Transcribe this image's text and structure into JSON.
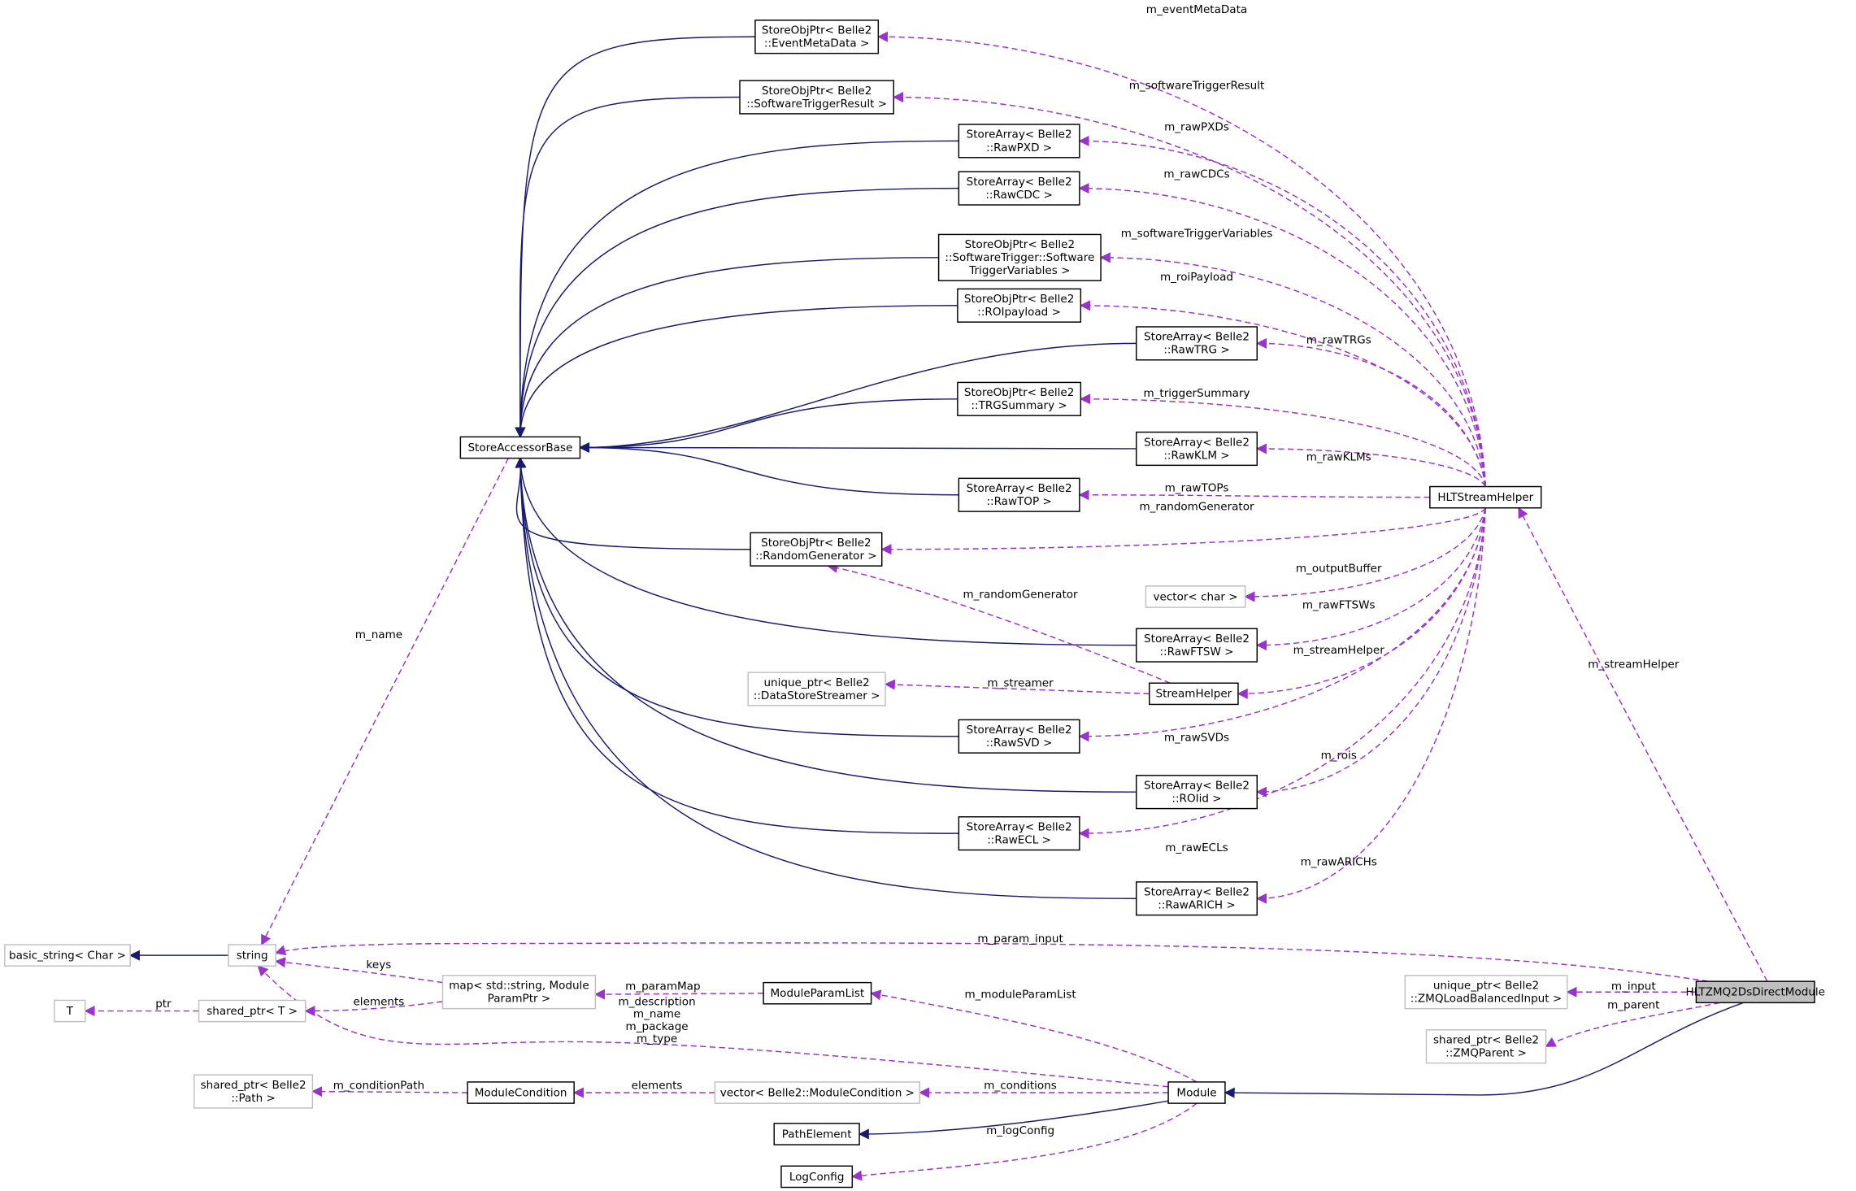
{
  "colors": {
    "inheritance": "#191970",
    "usage": "#9a32cd",
    "focus_fill": "#bfbfbf",
    "undocumented_border": "#bfbfbf"
  },
  "nodes": {
    "eventMeta": {
      "lines": [
        "StoreObjPtr< Belle2",
        "::EventMetaData >"
      ]
    },
    "swTrigRes": {
      "lines": [
        "StoreObjPtr< Belle2",
        "::SoftwareTriggerResult >"
      ]
    },
    "rawPXD": {
      "lines": [
        "StoreArray< Belle2",
        "::RawPXD >"
      ]
    },
    "rawCDC": {
      "lines": [
        "StoreArray< Belle2",
        "::RawCDC >"
      ]
    },
    "swTrigVar": {
      "lines": [
        "StoreObjPtr< Belle2",
        "::SoftwareTrigger::Software",
        "TriggerVariables >"
      ]
    },
    "roiPayload": {
      "lines": [
        "StoreObjPtr< Belle2",
        "::ROIpayload >"
      ]
    },
    "rawTRG": {
      "lines": [
        "StoreArray< Belle2",
        "::RawTRG >"
      ]
    },
    "trgSummary": {
      "lines": [
        "StoreObjPtr< Belle2",
        "::TRGSummary >"
      ]
    },
    "storeAccessorBase": {
      "lines": [
        "StoreAccessorBase"
      ]
    },
    "rawKLM": {
      "lines": [
        "StoreArray< Belle2",
        "::RawKLM >"
      ]
    },
    "rawTOP": {
      "lines": [
        "StoreArray< Belle2",
        "::RawTOP >"
      ]
    },
    "hltStreamHelper": {
      "lines": [
        "HLTStreamHelper"
      ]
    },
    "randomGen": {
      "lines": [
        "StoreObjPtr< Belle2",
        "::RandomGenerator >"
      ]
    },
    "vectorChar": {
      "lines": [
        "vector< char >"
      ]
    },
    "rawFTSW": {
      "lines": [
        "StoreArray< Belle2",
        "::RawFTSW >"
      ]
    },
    "streamHelper": {
      "lines": [
        "StreamHelper"
      ]
    },
    "dsStreamer": {
      "lines": [
        "unique_ptr< Belle2",
        "::DataStoreStreamer >"
      ]
    },
    "rawSVD": {
      "lines": [
        "StoreArray< Belle2",
        "::RawSVD >"
      ]
    },
    "roiId": {
      "lines": [
        "StoreArray< Belle2",
        "::ROIid >"
      ]
    },
    "rawECL": {
      "lines": [
        "StoreArray< Belle2",
        "::RawECL >"
      ]
    },
    "rawARICH": {
      "lines": [
        "StoreArray< Belle2",
        "::RawARICH >"
      ]
    },
    "basicString": {
      "lines": [
        "basic_string< Char >"
      ]
    },
    "string": {
      "lines": [
        "string"
      ]
    },
    "T": {
      "lines": [
        "T"
      ]
    },
    "sharedT": {
      "lines": [
        "shared_ptr< T >"
      ]
    },
    "map": {
      "lines": [
        "map< std::string, Module",
        "ParamPtr >"
      ]
    },
    "moduleParamList": {
      "lines": [
        "ModuleParamList"
      ]
    },
    "zmqInput": {
      "lines": [
        "unique_ptr< Belle2",
        "::ZMQLoadBalancedInput >"
      ]
    },
    "hltzmq": {
      "lines": [
        "HLTZMQ2DsDirectModule"
      ]
    },
    "zmqParent": {
      "lines": [
        "shared_ptr< Belle2",
        "::ZMQParent >"
      ]
    },
    "sharedPath": {
      "lines": [
        "shared_ptr< Belle2",
        "::Path >"
      ]
    },
    "moduleCondition": {
      "lines": [
        "ModuleCondition"
      ]
    },
    "vectorModCond": {
      "lines": [
        "vector< Belle2::ModuleCondition >"
      ]
    },
    "module": {
      "lines": [
        "Module"
      ]
    },
    "pathElement": {
      "lines": [
        "PathElement"
      ]
    },
    "logConfig": {
      "lines": [
        "LogConfig"
      ]
    }
  },
  "edges": [
    {
      "kind": "inherit",
      "from": "eventMeta",
      "to": "storeAccessorBase"
    },
    {
      "kind": "inherit",
      "from": "swTrigRes",
      "to": "storeAccessorBase"
    },
    {
      "kind": "inherit",
      "from": "rawPXD",
      "to": "storeAccessorBase"
    },
    {
      "kind": "inherit",
      "from": "rawCDC",
      "to": "storeAccessorBase"
    },
    {
      "kind": "inherit",
      "from": "swTrigVar",
      "to": "storeAccessorBase"
    },
    {
      "kind": "inherit",
      "from": "roiPayload",
      "to": "storeAccessorBase"
    },
    {
      "kind": "inherit",
      "from": "rawTRG",
      "to": "storeAccessorBase"
    },
    {
      "kind": "inherit",
      "from": "trgSummary",
      "to": "storeAccessorBase"
    },
    {
      "kind": "inherit",
      "from": "rawKLM",
      "to": "storeAccessorBase"
    },
    {
      "kind": "inherit",
      "from": "rawTOP",
      "to": "storeAccessorBase"
    },
    {
      "kind": "inherit",
      "from": "randomGen",
      "to": "storeAccessorBase"
    },
    {
      "kind": "inherit",
      "from": "rawFTSW",
      "to": "storeAccessorBase"
    },
    {
      "kind": "inherit",
      "from": "rawSVD",
      "to": "storeAccessorBase"
    },
    {
      "kind": "inherit",
      "from": "roiId",
      "to": "storeAccessorBase"
    },
    {
      "kind": "inherit",
      "from": "rawECL",
      "to": "storeAccessorBase"
    },
    {
      "kind": "inherit",
      "from": "rawARICH",
      "to": "storeAccessorBase"
    },
    {
      "kind": "inherit",
      "from": "string",
      "to": "basicString"
    },
    {
      "kind": "inherit",
      "from": "module",
      "to": "pathElement"
    },
    {
      "kind": "inherit",
      "from": "hltzmq",
      "to": "module"
    },
    {
      "kind": "use",
      "from": "hltStreamHelper",
      "to": "eventMeta",
      "label": "m_eventMetaData"
    },
    {
      "kind": "use",
      "from": "hltStreamHelper",
      "to": "swTrigRes",
      "label": "m_softwareTriggerResult"
    },
    {
      "kind": "use",
      "from": "hltStreamHelper",
      "to": "rawPXD",
      "label": "m_rawPXDs"
    },
    {
      "kind": "use",
      "from": "hltStreamHelper",
      "to": "rawCDC",
      "label": "m_rawCDCs"
    },
    {
      "kind": "use",
      "from": "hltStreamHelper",
      "to": "swTrigVar",
      "label": "m_softwareTriggerVariables"
    },
    {
      "kind": "use",
      "from": "hltStreamHelper",
      "to": "roiPayload",
      "label": "m_roiPayload"
    },
    {
      "kind": "use",
      "from": "hltStreamHelper",
      "to": "rawTRG",
      "label": "m_rawTRGs"
    },
    {
      "kind": "use",
      "from": "hltStreamHelper",
      "to": "trgSummary",
      "label": "m_triggerSummary"
    },
    {
      "kind": "use",
      "from": "hltStreamHelper",
      "to": "rawKLM",
      "label": "m_rawKLMs"
    },
    {
      "kind": "use",
      "from": "hltStreamHelper",
      "to": "rawTOP",
      "label": "m_rawTOPs"
    },
    {
      "kind": "use",
      "from": "hltStreamHelper",
      "to": "randomGen",
      "label": "m_randomGenerator"
    },
    {
      "kind": "use",
      "from": "hltStreamHelper",
      "to": "vectorChar",
      "label": "m_outputBuffer"
    },
    {
      "kind": "use",
      "from": "hltStreamHelper",
      "to": "rawFTSW",
      "label": "m_rawFTSWs"
    },
    {
      "kind": "use",
      "from": "hltStreamHelper",
      "to": "streamHelper",
      "label": "m_streamHelper"
    },
    {
      "kind": "use",
      "from": "hltStreamHelper",
      "to": "rawSVD",
      "label": "m_rawSVDs"
    },
    {
      "kind": "use",
      "from": "hltStreamHelper",
      "to": "roiId",
      "label": "m_rois"
    },
    {
      "kind": "use",
      "from": "hltStreamHelper",
      "to": "rawECL",
      "label": "m_rawECLs"
    },
    {
      "kind": "use",
      "from": "hltStreamHelper",
      "to": "rawARICH",
      "label": "m_rawARICHs"
    },
    {
      "kind": "use",
      "from": "hltzmq",
      "to": "hltStreamHelper",
      "label": "m_streamHelper"
    },
    {
      "kind": "use",
      "from": "hltzmq",
      "to": "string",
      "label": "m_param_input"
    },
    {
      "kind": "use",
      "from": "hltzmq",
      "to": "zmqInput",
      "label": "m_input"
    },
    {
      "kind": "use",
      "from": "hltzmq",
      "to": "zmqParent",
      "label": "m_parent"
    },
    {
      "kind": "use",
      "from": "storeAccessorBase",
      "to": "string",
      "label": "m_name"
    },
    {
      "kind": "use",
      "from": "streamHelper",
      "to": "randomGen",
      "label": "m_randomGenerator"
    },
    {
      "kind": "use",
      "from": "streamHelper",
      "to": "dsStreamer",
      "label": "m_streamer"
    },
    {
      "kind": "use",
      "from": "map",
      "to": "string",
      "label": "keys"
    },
    {
      "kind": "use",
      "from": "map",
      "to": "sharedT",
      "label": "elements"
    },
    {
      "kind": "use",
      "from": "sharedT",
      "to": "T",
      "label": "ptr"
    },
    {
      "kind": "use",
      "from": "moduleParamList",
      "to": "map",
      "label": "m_paramMap"
    },
    {
      "kind": "use",
      "from": "module",
      "to": "moduleParamList",
      "label": "m_moduleParamList"
    },
    {
      "kind": "use",
      "from": "module",
      "to": "string",
      "label": "m_description\nm_name\nm_package\nm_type"
    },
    {
      "kind": "use",
      "from": "module",
      "to": "vectorModCond",
      "label": "m_conditions"
    },
    {
      "kind": "use",
      "from": "vectorModCond",
      "to": "moduleCondition",
      "label": "elements"
    },
    {
      "kind": "use",
      "from": "moduleCondition",
      "to": "sharedPath",
      "label": "m_conditionPath"
    },
    {
      "kind": "use",
      "from": "module",
      "to": "logConfig",
      "label": "m_logConfig"
    }
  ]
}
